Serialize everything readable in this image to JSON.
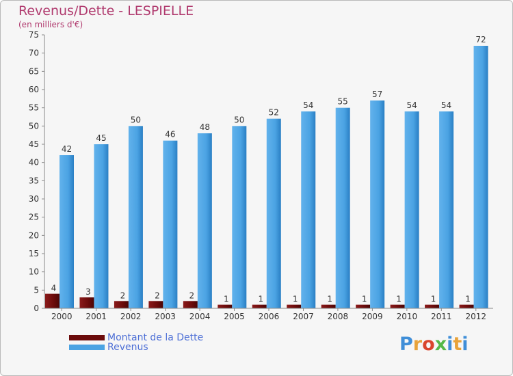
{
  "header": {
    "title": "Revenus/Dette - LESPIELLE",
    "subtitle": "(en milliers d'€)"
  },
  "legend": {
    "position": "bottom-left",
    "items": [
      {
        "label": "Montant de la Dette",
        "color": "#6b0b0b"
      },
      {
        "label": "Revenus",
        "color": "#4ba3e3"
      }
    ]
  },
  "logo": {
    "text": "Proxiti",
    "colors": [
      "#3f8ed8",
      "#e8a33a",
      "#d9452d",
      "#54b848",
      "#3f8ed8",
      "#e8a33a",
      "#3f8ed8"
    ]
  },
  "colors": {
    "debt_bar": "#6b0b0b",
    "revenue_bar": "#4ba3e3",
    "title": "#b03a6e",
    "legend_text": "#4d6fd6",
    "plot_background": "#f6f6f6"
  },
  "chart_data": {
    "type": "bar",
    "categories": [
      "2000",
      "2001",
      "2002",
      "2003",
      "2004",
      "2005",
      "2006",
      "2007",
      "2008",
      "2009",
      "2010",
      "2011",
      "2012"
    ],
    "series": [
      {
        "name": "Montant de la Dette",
        "values": [
          4,
          3,
          2,
          2,
          2,
          1,
          1,
          1,
          1,
          1,
          1,
          1,
          1
        ]
      },
      {
        "name": "Revenus",
        "values": [
          42,
          45,
          50,
          46,
          48,
          50,
          52,
          54,
          55,
          57,
          54,
          54,
          72
        ]
      }
    ],
    "title": "Revenus/Dette - LESPIELLE",
    "subtitle": "(en milliers d'€)",
    "xlabel": "",
    "ylabel": "",
    "ylim": [
      0,
      75
    ],
    "yticks": [
      0,
      5,
      10,
      15,
      20,
      25,
      30,
      35,
      40,
      45,
      50,
      55,
      60,
      65,
      70,
      75
    ],
    "grid": false,
    "data_labels": true
  }
}
